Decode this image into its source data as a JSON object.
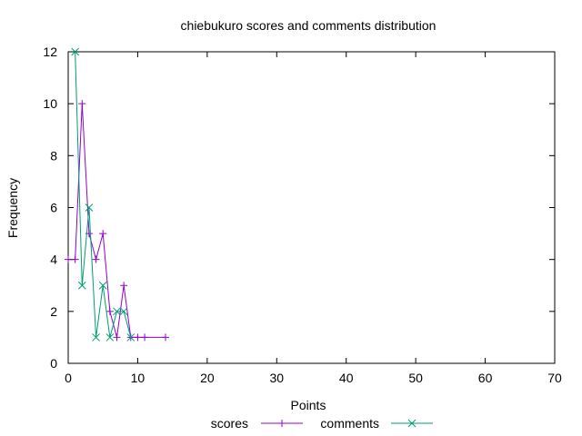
{
  "chart_data": {
    "type": "line",
    "title": "chiebukuro scores and comments distribution",
    "xlabel": "Points",
    "ylabel": "Frequency",
    "xlim": [
      0,
      70
    ],
    "ylim": [
      0,
      12
    ],
    "xticks": [
      0,
      10,
      20,
      30,
      40,
      50,
      60,
      70
    ],
    "yticks": [
      0,
      2,
      4,
      6,
      8,
      10,
      12
    ],
    "grid": false,
    "legend_position": "bottom-center",
    "series": [
      {
        "name": "scores",
        "color": "#9400d3",
        "marker": "plus",
        "x": [
          0,
          1,
          2,
          3,
          4,
          5,
          6,
          7,
          8,
          9,
          10,
          11,
          14
        ],
        "y": [
          4,
          4,
          10,
          5,
          4,
          5,
          2,
          1,
          3,
          1,
          1,
          1,
          1
        ]
      },
      {
        "name": "comments",
        "color": "#009e73",
        "marker": "cross",
        "x": [
          1,
          2,
          3,
          4,
          5,
          6,
          7,
          8,
          9
        ],
        "y": [
          12,
          3,
          6,
          1,
          3,
          1,
          2,
          2,
          1
        ]
      }
    ]
  }
}
